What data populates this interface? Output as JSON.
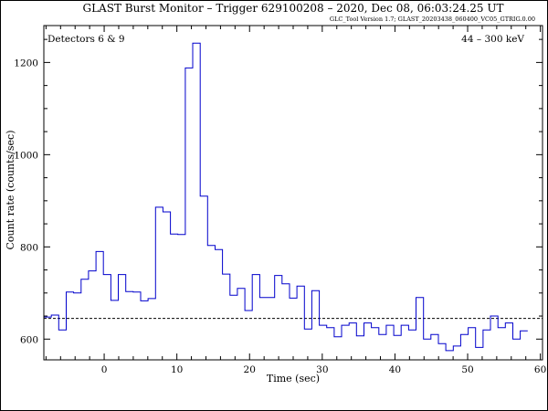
{
  "chart_data": {
    "type": "line",
    "title": "GLAST Burst Monitor  –  Trigger 629100208  –  2020, Dec 08, 06:03:24.25 UT",
    "subtitle": "GLC_Tool Version 1.7; GLAST_20203438_060400_VC05_GTRIG.0.00",
    "annotation_left": "Detectors 6 & 9",
    "annotation_right": "44 – 300 keV",
    "xlabel": "Time (sec)",
    "ylabel": "Count rate (counts/sec)",
    "xlim": [
      -8.3,
      60.3
    ],
    "ylim": [
      555,
      1280
    ],
    "xticks": [
      0,
      10,
      20,
      30,
      40,
      50,
      60
    ],
    "yticks": [
      600,
      800,
      1000,
      1200
    ],
    "line_color": "#0000cc",
    "background_level": 645,
    "series": [
      {
        "step": 1.024,
        "x_start": -8.3,
        "values": [
          648,
          652,
          620,
          702,
          700,
          730,
          748,
          790,
          740,
          684,
          740,
          703,
          702,
          683,
          688,
          886,
          876,
          828,
          827,
          1188,
          1242,
          910,
          803,
          794,
          741,
          695,
          710,
          662,
          740,
          690,
          690,
          738,
          720,
          689,
          715,
          622,
          705,
          630,
          625,
          605,
          630,
          635,
          607,
          635,
          625,
          610,
          630,
          608,
          630,
          620,
          690,
          600,
          610,
          590,
          575,
          585,
          610,
          625,
          582,
          620,
          650,
          625,
          635,
          600,
          618
        ]
      }
    ]
  }
}
